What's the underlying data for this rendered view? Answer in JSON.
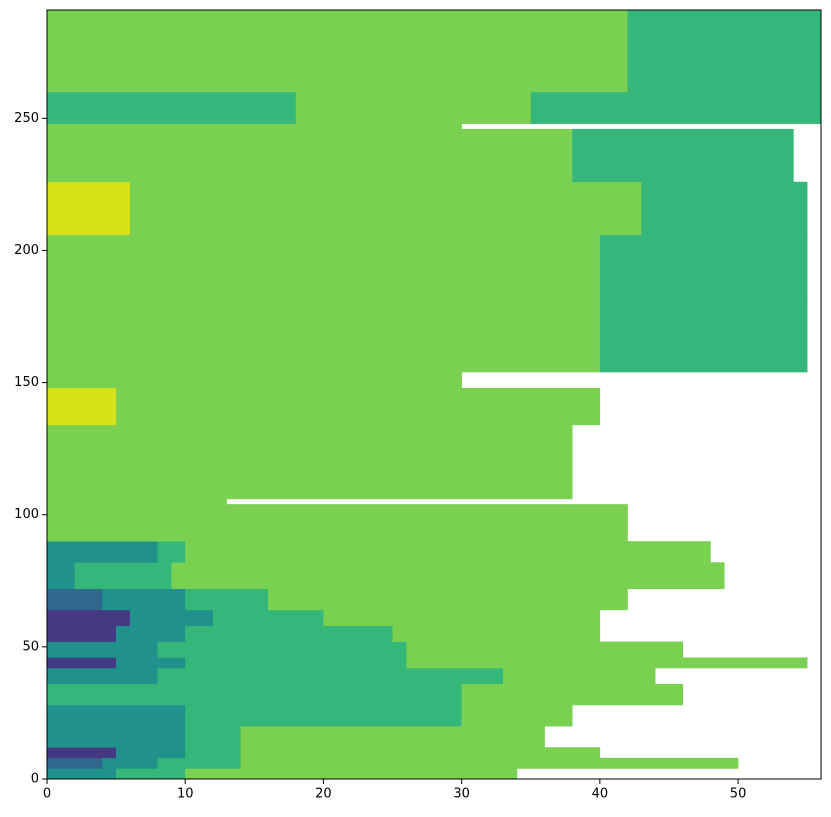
{
  "chart_data": {
    "type": "contourf",
    "palette": [
      "#443983",
      "#31688e",
      "#21918c",
      "#35b779",
      "#7ad151",
      "#d8e219"
    ],
    "xlim": [
      0,
      56
    ],
    "ylim": [
      0,
      291
    ],
    "xticks": [
      0,
      10,
      20,
      30,
      40,
      50
    ],
    "yticks": [
      0,
      50,
      100,
      150,
      200,
      250
    ],
    "rows": [
      {
        "y": [
          0,
          4
        ],
        "x": [
          0,
          5,
          10,
          34
        ],
        "c": [
          2,
          3,
          4
        ]
      },
      {
        "y": [
          4,
          8
        ],
        "x": [
          0,
          4,
          8,
          14,
          50
        ],
        "c": [
          1,
          2,
          3,
          4
        ]
      },
      {
        "y": [
          8,
          12
        ],
        "x": [
          0,
          5,
          10,
          14,
          40
        ],
        "c": [
          0,
          2,
          3,
          4
        ]
      },
      {
        "y": [
          12,
          20
        ],
        "x": [
          0,
          10,
          14,
          36
        ],
        "c": [
          2,
          3,
          4
        ]
      },
      {
        "y": [
          20,
          28
        ],
        "x": [
          0,
          10,
          30,
          38
        ],
        "c": [
          2,
          3,
          4
        ]
      },
      {
        "y": [
          28,
          36
        ],
        "x": [
          0,
          30,
          46
        ],
        "c": [
          3,
          4
        ]
      },
      {
        "y": [
          36,
          42
        ],
        "x": [
          0,
          8,
          33,
          44
        ],
        "c": [
          2,
          3,
          4
        ]
      },
      {
        "y": [
          42,
          46
        ],
        "x": [
          0,
          5,
          10,
          26,
          55
        ],
        "c": [
          0,
          2,
          3,
          4
        ]
      },
      {
        "y": [
          46,
          52
        ],
        "x": [
          0,
          8,
          26,
          46
        ],
        "c": [
          2,
          3,
          4
        ]
      },
      {
        "y": [
          52,
          58
        ],
        "x": [
          0,
          5,
          10,
          25,
          40
        ],
        "c": [
          0,
          2,
          3,
          4
        ]
      },
      {
        "y": [
          58,
          64
        ],
        "x": [
          0,
          6,
          12,
          20,
          40
        ],
        "c": [
          0,
          2,
          3,
          4
        ]
      },
      {
        "y": [
          64,
          72
        ],
        "x": [
          0,
          4,
          10,
          16,
          42
        ],
        "c": [
          1,
          2,
          3,
          4
        ]
      },
      {
        "y": [
          72,
          82
        ],
        "x": [
          0,
          2,
          9,
          49
        ],
        "c": [
          2,
          3,
          4
        ]
      },
      {
        "y": [
          82,
          90
        ],
        "x": [
          0,
          8,
          10,
          48
        ],
        "c": [
          2,
          3,
          4
        ]
      },
      {
        "y": [
          90,
          104
        ],
        "x": [
          0,
          42
        ],
        "c": [
          4
        ]
      },
      {
        "y": [
          104,
          106
        ],
        "x": [
          0,
          13
        ],
        "c": [
          4
        ]
      },
      {
        "y": [
          106,
          134
        ],
        "x": [
          0,
          38
        ],
        "c": [
          4
        ]
      },
      {
        "y": [
          134,
          148
        ],
        "x": [
          0,
          5,
          40
        ],
        "c": [
          5,
          4
        ]
      },
      {
        "y": [
          148,
          154
        ],
        "x": [
          0,
          30
        ],
        "c": [
          4
        ]
      },
      {
        "y": [
          154,
          180
        ],
        "x": [
          0,
          40,
          55
        ],
        "c": [
          4,
          3
        ]
      },
      {
        "y": [
          180,
          206
        ],
        "x": [
          0,
          40,
          55
        ],
        "c": [
          4,
          3
        ]
      },
      {
        "y": [
          206,
          226
        ],
        "x": [
          0,
          6,
          43,
          55
        ],
        "c": [
          5,
          4,
          3
        ]
      },
      {
        "y": [
          226,
          246
        ],
        "x": [
          0,
          38,
          54
        ],
        "c": [
          4,
          3
        ]
      },
      {
        "y": [
          246,
          248
        ],
        "x": [
          0,
          30
        ],
        "c": [
          4
        ]
      },
      {
        "y": [
          248,
          260
        ],
        "x": [
          0,
          18,
          35,
          56
        ],
        "c": [
          3,
          4,
          3
        ]
      },
      {
        "y": [
          260,
          291
        ],
        "x": [
          0,
          42,
          56
        ],
        "c": [
          4,
          3
        ]
      }
    ]
  }
}
